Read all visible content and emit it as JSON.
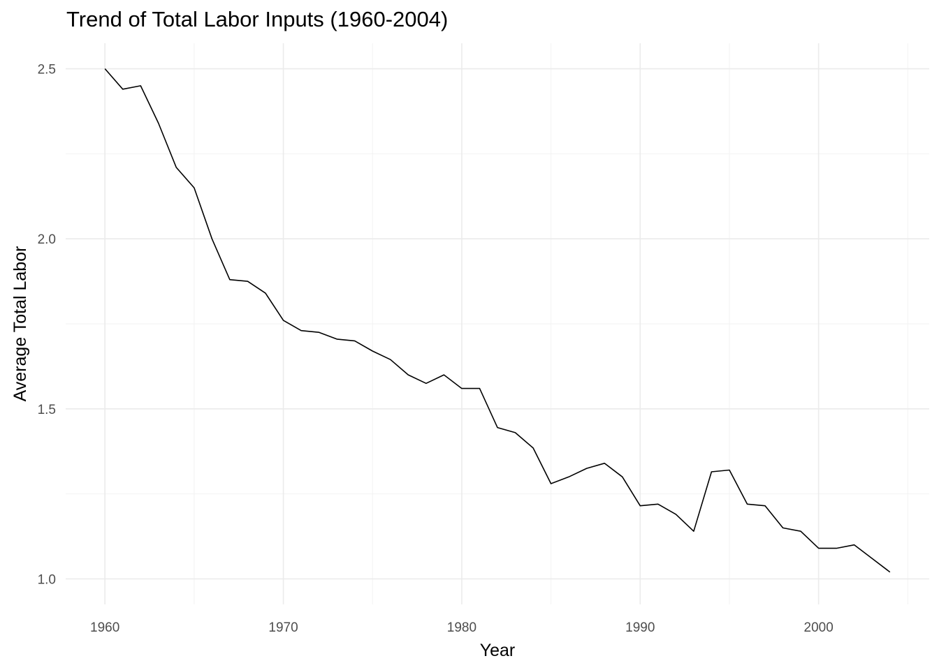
{
  "chart_data": {
    "type": "line",
    "title": "Trend of Total Labor Inputs (1960-2004)",
    "xlabel": "Year",
    "ylabel": "Average Total Labor",
    "xlim": [
      1957.8,
      2006.2
    ],
    "ylim": [
      0.925,
      2.575
    ],
    "x_ticks": [
      1960,
      1970,
      1980,
      1990,
      2000
    ],
    "y_ticks": [
      1.0,
      1.5,
      2.0,
      2.5
    ],
    "y_tick_labels": [
      "1.0",
      "1.5",
      "2.0",
      "2.5"
    ],
    "grid": true,
    "series": [
      {
        "color": "#000000",
        "x": [
          1960,
          1961,
          1962,
          1963,
          1964,
          1965,
          1966,
          1967,
          1968,
          1969,
          1970,
          1971,
          1972,
          1973,
          1974,
          1975,
          1976,
          1977,
          1978,
          1979,
          1980,
          1981,
          1982,
          1983,
          1984,
          1985,
          1986,
          1987,
          1988,
          1989,
          1990,
          1991,
          1992,
          1993,
          1994,
          1995,
          1996,
          1997,
          1998,
          1999,
          2000,
          2001,
          2002,
          2003,
          2004
        ],
        "values": [
          2.5,
          2.44,
          2.45,
          2.34,
          2.21,
          2.15,
          2.0,
          1.88,
          1.875,
          1.84,
          1.76,
          1.73,
          1.725,
          1.705,
          1.7,
          1.67,
          1.645,
          1.6,
          1.575,
          1.6,
          1.56,
          1.56,
          1.445,
          1.43,
          1.385,
          1.28,
          1.3,
          1.325,
          1.34,
          1.3,
          1.215,
          1.22,
          1.19,
          1.14,
          1.315,
          1.32,
          1.22,
          1.215,
          1.15,
          1.14,
          1.09,
          1.09,
          1.1,
          1.06,
          1.02
        ]
      }
    ]
  }
}
